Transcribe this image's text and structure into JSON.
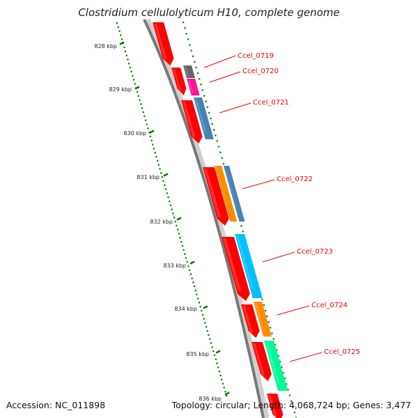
{
  "title": "Clostridium cellulolyticum H10, complete genome",
  "ticks": [
    {
      "label": "828 kbp",
      "kbp": 828
    },
    {
      "label": "829 kbp",
      "kbp": 829
    },
    {
      "label": "830 kbp",
      "kbp": 830
    },
    {
      "label": "831 kbp",
      "kbp": 831
    },
    {
      "label": "832 kbp",
      "kbp": 832
    },
    {
      "label": "833 kbp",
      "kbp": 833
    },
    {
      "label": "834 kbp",
      "kbp": 834
    },
    {
      "label": "835 kbp",
      "kbp": 835
    },
    {
      "label": "836 kbp",
      "kbp": 836
    }
  ],
  "genes": [
    {
      "name": "Ccel_0719",
      "color": "#666666",
      "cog": "#666666"
    },
    {
      "name": "Ccel_0720",
      "color": "#ff1493",
      "cog": "#ff1493"
    },
    {
      "name": "Ccel_0721",
      "color": "#4682b4",
      "cog": "#4682b4"
    },
    {
      "name": "Ccel_0722",
      "color": "#ff8c00",
      "cog": "#4682b4"
    },
    {
      "name": "Ccel_0723",
      "color": "#00bfff",
      "cog": "#00bfff"
    },
    {
      "name": "Ccel_0724",
      "color": "#ff8c00",
      "cog": "#ff8c00"
    },
    {
      "name": "Ccel_0725",
      "color": "#00fa9a",
      "cog": "#00fa9a"
    }
  ],
  "colors": {
    "cds": "#ff0000",
    "backbone": "#777777",
    "ruler": "#007700",
    "label": "#ee0000"
  },
  "footer": {
    "accession": "Accession: NC_011898",
    "stats": "Topology: circular; Length: 4,068,724 bp; Genes: 3,477"
  }
}
